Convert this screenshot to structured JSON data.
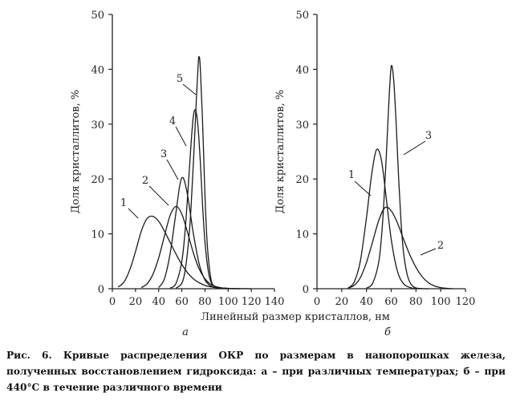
{
  "chart_data": [
    {
      "type": "line",
      "panel_label": "а",
      "ylabel": "Доля кристаллитов, %",
      "ylim": [
        0,
        50
      ],
      "xlim": [
        0,
        140
      ],
      "yticks": [
        0,
        10,
        20,
        30,
        40,
        50
      ],
      "xticks": [
        0,
        20,
        40,
        60,
        80,
        100,
        120,
        140
      ],
      "series": [
        {
          "name": "1",
          "x": [
            5,
            10,
            15,
            20,
            25,
            30,
            35,
            40,
            45,
            50,
            55,
            60,
            65,
            70,
            75,
            80,
            85,
            90,
            95,
            100,
            105,
            110,
            115,
            120
          ],
          "y": [
            0.3,
            1.2,
            3.4,
            6.8,
            10.5,
            12.8,
            13.2,
            12.3,
            10.5,
            8.4,
            6.3,
            4.4,
            2.9,
            1.8,
            1.1,
            0.6,
            0.35,
            0.2,
            0.12,
            0.07,
            0.04,
            0.02,
            0.01,
            0
          ]
        },
        {
          "name": "2",
          "x": [
            25,
            30,
            35,
            40,
            45,
            50,
            55,
            60,
            65,
            70,
            75,
            80,
            85,
            90,
            95,
            100,
            105,
            110
          ],
          "y": [
            0.2,
            0.9,
            2.6,
            5.6,
            9.6,
            13.4,
            15.0,
            13.6,
            10.2,
            6.5,
            3.6,
            1.8,
            0.8,
            0.35,
            0.15,
            0.06,
            0.02,
            0
          ]
        },
        {
          "name": "3",
          "x": [
            40,
            45,
            50,
            55,
            58,
            60,
            62,
            65,
            68,
            70,
            75,
            80,
            85,
            90,
            95,
            100
          ],
          "y": [
            0.2,
            1.8,
            6.5,
            14.0,
            18.6,
            20.2,
            19.8,
            17.0,
            12.8,
            10.0,
            4.5,
            1.6,
            0.5,
            0.15,
            0.04,
            0
          ]
        },
        {
          "name": "4",
          "x": [
            50,
            55,
            60,
            63,
            66,
            68,
            70,
            72,
            74,
            76,
            78,
            80,
            83,
            86,
            90,
            95
          ],
          "y": [
            0.1,
            1.0,
            5.0,
            11.0,
            20.0,
            26.5,
            31.5,
            32.5,
            29.5,
            23.0,
            15.0,
            8.5,
            3.0,
            0.9,
            0.2,
            0
          ]
        },
        {
          "name": "5",
          "x": [
            55,
            60,
            63,
            66,
            68,
            70,
            72,
            74,
            75,
            76,
            78,
            80,
            82,
            85,
            88,
            92
          ],
          "y": [
            0.1,
            1.0,
            3.5,
            9.0,
            15.0,
            23.0,
            32.0,
            40.5,
            42.3,
            40.0,
            30.0,
            17.0,
            8.0,
            2.0,
            0.4,
            0
          ]
        }
      ]
    },
    {
      "type": "line",
      "panel_label": "б",
      "ylabel": "Доля кристаллитов, %",
      "ylim": [
        0,
        50
      ],
      "xlim": [
        0,
        120
      ],
      "yticks": [
        0,
        10,
        20,
        30,
        40,
        50
      ],
      "xticks": [
        0,
        20,
        40,
        60,
        80,
        100,
        120
      ],
      "series": [
        {
          "name": "1",
          "x": [
            25,
            30,
            35,
            40,
            44,
            48,
            52,
            56,
            60,
            65,
            70,
            75,
            80,
            85,
            90
          ],
          "y": [
            0.1,
            1.2,
            5.0,
            13.0,
            20.5,
            25.3,
            23.5,
            16.5,
            9.0,
            3.2,
            0.9,
            0.25,
            0.05,
            0.01,
            0
          ]
        },
        {
          "name": "2",
          "x": [
            25,
            30,
            35,
            40,
            45,
            50,
            55,
            60,
            65,
            70,
            75,
            80,
            85,
            90,
            95,
            100,
            105,
            110
          ],
          "y": [
            0.1,
            0.6,
            2.0,
            4.8,
            8.6,
            12.5,
            14.8,
            14.2,
            12.0,
            9.0,
            6.2,
            3.9,
            2.2,
            1.1,
            0.5,
            0.2,
            0.07,
            0
          ]
        },
        {
          "name": "3",
          "x": [
            40,
            45,
            50,
            53,
            56,
            58,
            60,
            62,
            64,
            66,
            68,
            70,
            73,
            76,
            80,
            85
          ],
          "y": [
            0.1,
            1.0,
            5.0,
            12.0,
            24.0,
            33.5,
            40.5,
            38.0,
            30.0,
            20.0,
            12.0,
            6.5,
            2.5,
            0.8,
            0.15,
            0
          ]
        }
      ]
    }
  ],
  "xlabel": "Линейный размер кристаллов, нм",
  "caption": "Рис. 6. Кривые распределения ОКР по размерам в нанопорошках железа, полученных восстановлением гидроксида: а – при различных температурах; б – при 440°С в течение различного времени"
}
